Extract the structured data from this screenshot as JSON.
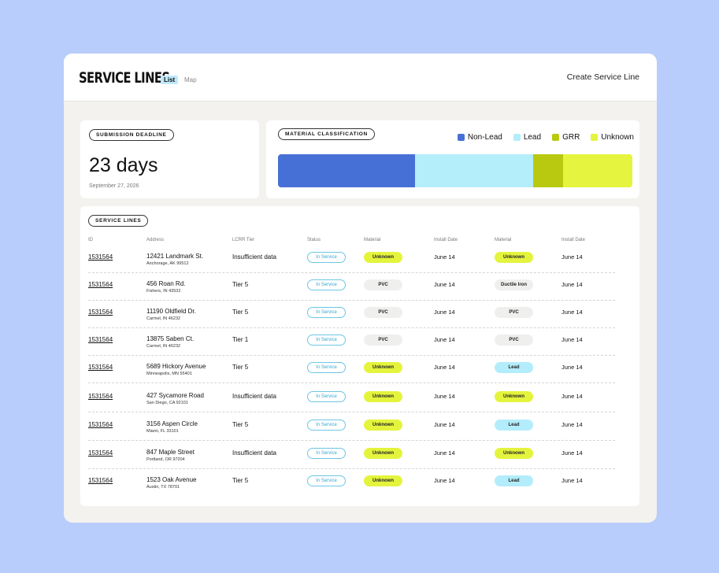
{
  "header": {
    "title": "SERVICE LINES",
    "tabs": [
      {
        "label": "List",
        "active": true
      },
      {
        "label": "Map",
        "active": false
      }
    ],
    "create_label": "Create Service Line"
  },
  "deadline": {
    "label": "SUBMISSION DEADLINE",
    "value": "23 days",
    "date": "September 27, 2026"
  },
  "material": {
    "label": "MATERIAL CLASSIFICATION",
    "legend": [
      {
        "name": "Non-Lead",
        "color": "#4670d6",
        "share": 0.387
      },
      {
        "name": "Lead",
        "color": "#b4eefb",
        "share": 0.333
      },
      {
        "name": "GRR",
        "color": "#b9c90f",
        "share": 0.085
      },
      {
        "name": "Unknown",
        "color": "#e5f43e",
        "share": 0.195
      }
    ]
  },
  "lines": {
    "label": "SERVICE LINES",
    "columns": [
      "ID",
      "Address",
      "LCRR Tier",
      "Status",
      "Material",
      "Install Date",
      "Material",
      "Install Date"
    ],
    "rows": [
      {
        "id": "1531564",
        "address": "12421 Landmark St.",
        "city": "Anchorage, AK 99512",
        "tier": "Insufficient data",
        "status": "In Service",
        "material1": "Unknown",
        "date1": "June 14",
        "material2": "Unknown",
        "date2": "June 14"
      },
      {
        "id": "1531564",
        "address": "456 Roan Rd.",
        "city": "Fishers, IN 43532",
        "tier": "Tier 5",
        "status": "In Service",
        "material1": "PVC",
        "date1": "June 14",
        "material2": "Ductile Iron",
        "date2": "June 14"
      },
      {
        "id": "1531564",
        "address": "11190 Oldfield Dr.",
        "city": "Carmel, IN 46232",
        "tier": "Tier 5",
        "status": "In Service",
        "material1": "PVC",
        "date1": "June 14",
        "material2": "PVC",
        "date2": "June 14"
      },
      {
        "id": "1531564",
        "address": "13875 Saben Ct.",
        "city": "Carmel, IN 46232",
        "tier": "Tier 1",
        "status": "In Service",
        "material1": "PVC",
        "date1": "June 14",
        "material2": "PVC",
        "date2": "June 14"
      },
      {
        "id": "1531564",
        "address": "5689 Hickory Avenue",
        "city": "Minneapolis, MN 55401",
        "tier": "Tier 5",
        "status": "In Service",
        "material1": "Unknown",
        "date1": "June 14",
        "material2": "Lead",
        "date2": "June 14"
      },
      {
        "id": "1531564",
        "address": "427 Sycamore Road",
        "city": "San Diego, CA 92101",
        "tier": "Insufficient data",
        "status": "In Service",
        "material1": "Unknown",
        "date1": "June 14",
        "material2": "Unknown",
        "date2": "June 14"
      },
      {
        "id": "1531564",
        "address": "3156 Aspen Circle",
        "city": "Miami, FL 33101",
        "tier": "Tier 5",
        "status": "In Service",
        "material1": "Unknown",
        "date1": "June 14",
        "material2": "Lead",
        "date2": "June 14"
      },
      {
        "id": "1531564",
        "address": "847 Maple Street",
        "city": "Portland, OR 97204",
        "tier": "Insufficient data",
        "status": "In Service",
        "material1": "Unknown",
        "date1": "June 14",
        "material2": "Unknown",
        "date2": "June 14"
      },
      {
        "id": "1531564",
        "address": "1523 Oak Avenue",
        "city": "Austin, TX 78701",
        "tier": "Tier 5",
        "status": "In Service",
        "material1": "Unknown",
        "date1": "June 14",
        "material2": "Lead",
        "date2": "June 14"
      }
    ]
  }
}
